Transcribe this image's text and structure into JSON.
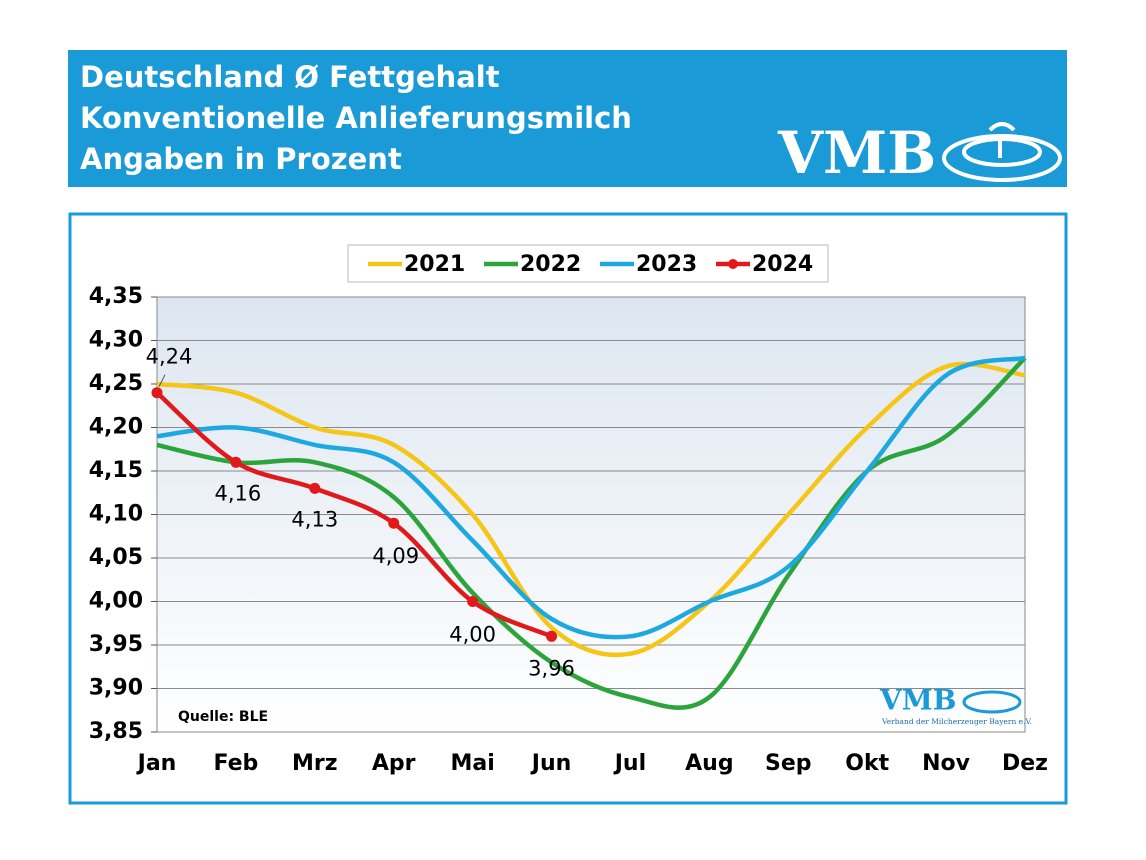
{
  "chart_data": {
    "type": "line",
    "title": "Deutschland Ø Fettgehalt",
    "subtitle": [
      "Konventionelle Anlieferungsmilch",
      "Angaben in Prozent"
    ],
    "logo": "VMB",
    "logo_caption": "Verband der Milcherzeuger Bayern e.V.",
    "source": "Quelle: BLE",
    "categories": [
      "Jan",
      "Feb",
      "Mrz",
      "Apr",
      "Mai",
      "Jun",
      "Jul",
      "Aug",
      "Sep",
      "Okt",
      "Nov",
      "Dez"
    ],
    "series": [
      {
        "name": "2021",
        "color": "#f5c518",
        "values": [
          4.25,
          4.24,
          4.2,
          4.18,
          4.1,
          3.97,
          3.94,
          4.0,
          4.1,
          4.2,
          4.27,
          4.26
        ]
      },
      {
        "name": "2022",
        "color": "#2ca43c",
        "values": [
          4.18,
          4.16,
          4.16,
          4.12,
          4.01,
          3.93,
          3.89,
          3.89,
          4.03,
          4.15,
          4.19,
          4.28
        ]
      },
      {
        "name": "2023",
        "color": "#1ea8e0",
        "values": [
          4.19,
          4.2,
          4.18,
          4.16,
          4.07,
          3.98,
          3.96,
          4.0,
          4.04,
          4.15,
          4.26,
          4.28
        ]
      },
      {
        "name": "2024",
        "color": "#e0191b",
        "markers": true,
        "values": [
          4.24,
          4.16,
          4.13,
          4.09,
          4.0,
          3.96,
          null,
          null,
          null,
          null,
          null,
          null
        ],
        "value_labels": [
          "4,24",
          "4,16",
          "4,13",
          "4,09",
          "4,00",
          "3,96",
          null,
          null,
          null,
          null,
          null,
          null
        ]
      }
    ],
    "ylim": [
      3.85,
      4.35
    ],
    "yticks": [
      {
        "value": 3.85,
        "label": "3,85"
      },
      {
        "value": 3.9,
        "label": "3,90"
      },
      {
        "value": 3.95,
        "label": "3,95"
      },
      {
        "value": 4.0,
        "label": "4,00"
      },
      {
        "value": 4.05,
        "label": "4,05"
      },
      {
        "value": 4.1,
        "label": "4,10"
      },
      {
        "value": 4.15,
        "label": "4,15"
      },
      {
        "value": 4.2,
        "label": "4,20"
      },
      {
        "value": 4.25,
        "label": "4,25"
      },
      {
        "value": 4.3,
        "label": "4,30"
      },
      {
        "value": 4.35,
        "label": "4,35"
      }
    ],
    "grid": true,
    "legend": "top"
  }
}
